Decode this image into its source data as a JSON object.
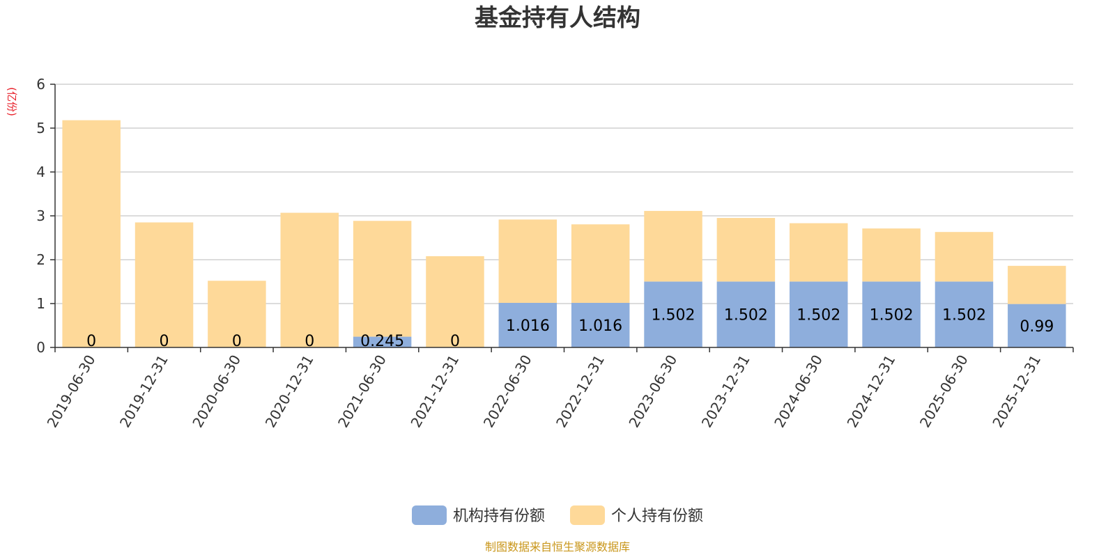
{
  "chart_data": {
    "type": "bar",
    "stacked": true,
    "title": "基金持有人结构",
    "ylabel": "(亿份)",
    "ylim": [
      0,
      6
    ],
    "yticks": [
      0,
      1,
      2,
      3,
      4,
      5,
      6
    ],
    "grid": true,
    "legend_position": "bottom-center",
    "categories": [
      "2019-06-30",
      "2019-12-31",
      "2020-06-30",
      "2020-12-31",
      "2021-06-30",
      "2021-12-31",
      "2022-06-30",
      "2022-12-31",
      "2023-06-30",
      "2023-12-31",
      "2024-06-30",
      "2024-12-31",
      "2025-06-30",
      "2025-12-31"
    ],
    "series": [
      {
        "name": "机构持有份额",
        "color": "#8eaedc",
        "values": [
          0,
          0,
          0,
          0,
          0.245,
          0,
          1.016,
          1.016,
          1.502,
          1.502,
          1.502,
          1.502,
          1.502,
          0.99
        ],
        "labels": [
          "0",
          "0",
          "0",
          "0",
          "0.245",
          "0",
          "1.016",
          "1.016",
          "1.502",
          "1.502",
          "1.502",
          "1.502",
          "1.502",
          "0.99"
        ]
      },
      {
        "name": "个人持有份额",
        "color": "#fed999",
        "values": [
          5.18,
          2.85,
          1.52,
          3.07,
          2.64,
          2.08,
          1.9,
          1.79,
          1.61,
          1.45,
          1.33,
          1.21,
          1.13,
          0.87
        ]
      }
    ],
    "source": "制图数据来自恒生聚源数据库"
  }
}
